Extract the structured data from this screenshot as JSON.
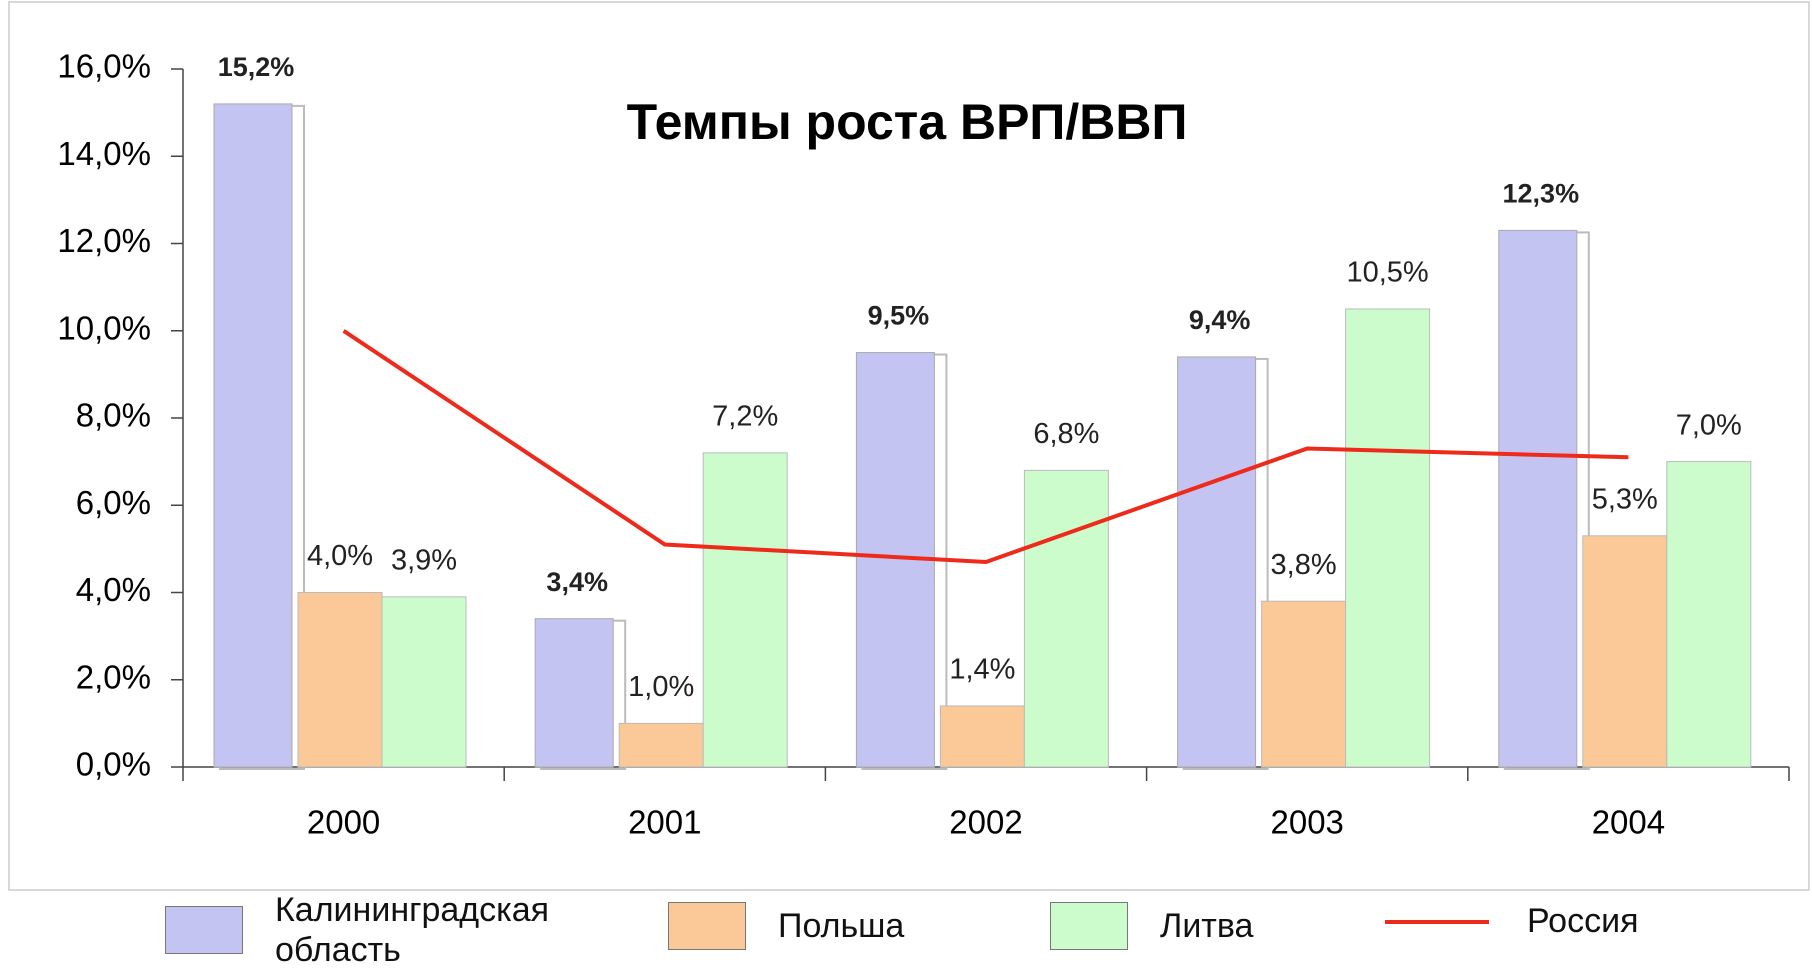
{
  "chart_data": {
    "type": "bar",
    "title": "Темпы роста ВРП/ВВП",
    "categories": [
      "2000",
      "2001",
      "2002",
      "2003",
      "2004"
    ],
    "series": [
      {
        "name": "Калининградская область",
        "color": "#c4c4f2",
        "values": [
          15.2,
          3.4,
          9.5,
          9.4,
          12.3
        ],
        "value_labels": [
          "15,2%",
          "3,4%",
          "9,5%",
          "9,4%",
          "12,3%"
        ]
      },
      {
        "name": "Польша",
        "color": "#fbc898",
        "values": [
          4.0,
          1.0,
          1.4,
          3.8,
          5.3
        ],
        "value_labels": [
          "4,0%",
          "1,0%",
          "1,4%",
          "3,8%",
          "5,3%"
        ]
      },
      {
        "name": "Литва",
        "color": "#ccfccc",
        "values": [
          3.9,
          7.2,
          6.8,
          10.5,
          7.0
        ],
        "value_labels": [
          "3,9%",
          "7,2%",
          "6,8%",
          "10,5%",
          "7,0%"
        ]
      },
      {
        "name": "Россия",
        "color": "#ee2a1a",
        "type": "line",
        "values": [
          10.0,
          5.1,
          4.7,
          7.3,
          7.1
        ]
      }
    ],
    "ylim": [
      0,
      16
    ],
    "yticks": [
      {
        "value": 0,
        "label": "0,0%"
      },
      {
        "value": 2,
        "label": "2,0%"
      },
      {
        "value": 4,
        "label": "4,0%"
      },
      {
        "value": 6,
        "label": "6,0%"
      },
      {
        "value": 8,
        "label": "8,0%"
      },
      {
        "value": 10,
        "label": "10,0%"
      },
      {
        "value": 12,
        "label": "12,0%"
      },
      {
        "value": 14,
        "label": "14,0%"
      },
      {
        "value": 16,
        "label": "16,0%"
      }
    ],
    "grid": false,
    "legend": "bottom"
  }
}
